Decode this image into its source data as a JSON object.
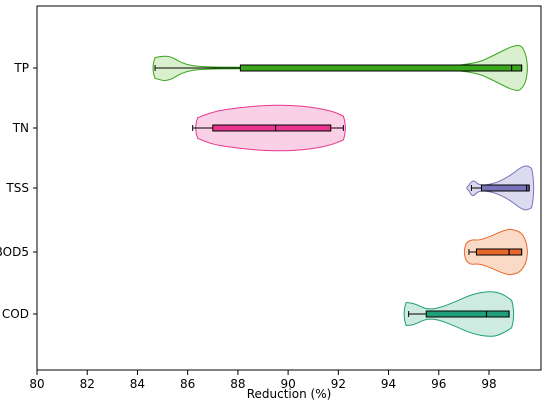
{
  "chart_data": {
    "type": "violin",
    "orientation": "horizontal",
    "xlabel": "Reduction (%)",
    "ylabel": "",
    "xlim": [
      80,
      100
    ],
    "xticks": [
      80,
      82,
      84,
      86,
      88,
      90,
      92,
      94,
      96,
      98
    ],
    "grid": false,
    "categories": [
      "TP",
      "TN",
      "TSS",
      "BOD5",
      "COD"
    ],
    "series": [
      {
        "category": "TP",
        "color": "#3aa61c",
        "fill": "#d3ecc6",
        "min": 84.7,
        "q1": 88.1,
        "median": 98.9,
        "q3": 99.3,
        "max": 99.3,
        "density": [
          [
            84.7,
            0.45
          ],
          [
            85.2,
            0.6
          ],
          [
            85.8,
            0.18
          ],
          [
            86.5,
            0.05
          ],
          [
            88,
            0.03
          ],
          [
            92,
            0.02
          ],
          [
            96,
            0.04
          ],
          [
            97.5,
            0.2
          ],
          [
            98.2,
            0.55
          ],
          [
            98.9,
            0.95
          ],
          [
            99.3,
            1.0
          ],
          [
            99.45,
            0.6
          ]
        ]
      },
      {
        "category": "TN",
        "color": "#e8368f",
        "fill": "#f9c8e2",
        "min": 86.2,
        "q1": 87.0,
        "median": 89.5,
        "q3": 91.7,
        "max": 92.2,
        "density": [
          [
            86.4,
            0.45
          ],
          [
            87,
            0.72
          ],
          [
            88,
            0.88
          ],
          [
            89,
            0.98
          ],
          [
            90,
            1.0
          ],
          [
            91,
            0.9
          ],
          [
            91.8,
            0.72
          ],
          [
            92.2,
            0.52
          ]
        ]
      },
      {
        "category": "TSS",
        "color": "#7a73b9",
        "fill": "#d6d4ec",
        "min": 97.3,
        "q1": 97.7,
        "median": 99.5,
        "q3": 99.6,
        "max": 99.6,
        "density": [
          [
            97.2,
            0.12
          ],
          [
            97.35,
            0.4
          ],
          [
            97.6,
            0.1
          ],
          [
            98.2,
            0.18
          ],
          [
            98.8,
            0.5
          ],
          [
            99.2,
            0.85
          ],
          [
            99.5,
            1.0
          ],
          [
            99.7,
            0.85
          ]
        ]
      },
      {
        "category": "BOD5",
        "color": "#e8672a",
        "fill": "#f8d3bd",
        "min": 97.2,
        "q1": 97.5,
        "median": 98.8,
        "q3": 99.3,
        "max": 99.3,
        "density": [
          [
            97.1,
            0.38
          ],
          [
            97.25,
            0.55
          ],
          [
            97.6,
            0.5
          ],
          [
            98.1,
            0.7
          ],
          [
            98.6,
            0.95
          ],
          [
            98.9,
            1.0
          ],
          [
            99.3,
            0.85
          ],
          [
            99.45,
            0.5
          ]
        ]
      },
      {
        "category": "COD",
        "color": "#1f9e7a",
        "fill": "#c5e8dc",
        "min": 94.8,
        "q1": 95.5,
        "median": 97.9,
        "q3": 98.8,
        "max": 98.8,
        "density": [
          [
            94.7,
            0.5
          ],
          [
            95.0,
            0.48
          ],
          [
            95.5,
            0.2
          ],
          [
            96.0,
            0.25
          ],
          [
            96.7,
            0.55
          ],
          [
            97.3,
            0.85
          ],
          [
            98.0,
            1.0
          ],
          [
            98.5,
            0.9
          ],
          [
            98.9,
            0.6
          ]
        ]
      }
    ]
  }
}
